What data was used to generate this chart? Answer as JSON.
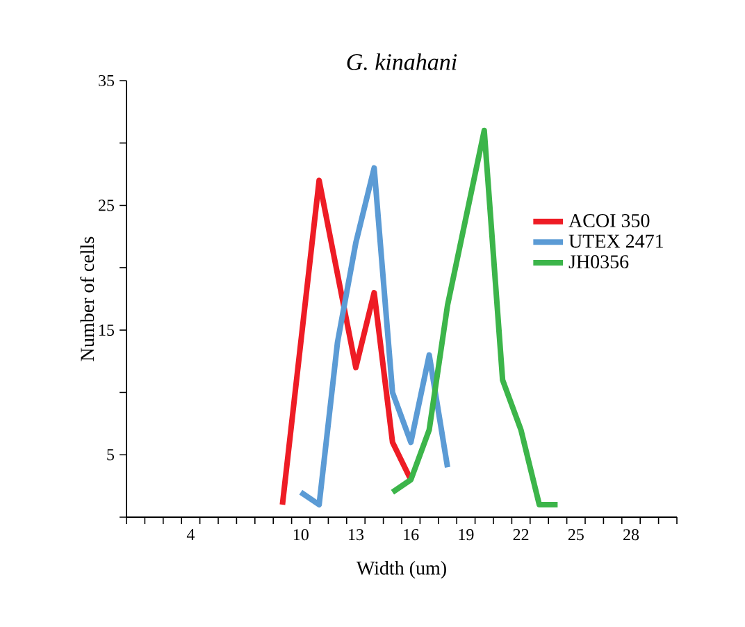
{
  "chart_data": {
    "type": "line",
    "title": "G. kinahani",
    "xlabel": "Width (um)",
    "ylabel": "Number of cells",
    "xlim": [
      0.5,
      30.5
    ],
    "xticks": [
      4,
      10,
      13,
      16,
      19,
      22,
      25,
      28,
      {
        "value": 0.5,
        "label": null
      },
      {
        "value": 1.5,
        "label": null
      },
      {
        "value": 2.5,
        "label": null
      },
      {
        "value": 3.5,
        "label": null
      },
      {
        "value": 4.5,
        "label": null
      },
      {
        "value": 5.5,
        "label": null
      },
      {
        "value": 6.5,
        "label": null
      },
      {
        "value": 7.5,
        "label": null
      },
      {
        "value": 8.5,
        "label": null
      },
      {
        "value": 9.5,
        "label": null
      },
      {
        "value": 10.5,
        "label": null
      },
      {
        "value": 11.5,
        "label": null
      },
      {
        "value": 12.5,
        "label": null
      },
      {
        "value": 13.5,
        "label": null
      },
      {
        "value": 14.5,
        "label": null
      },
      {
        "value": 15.5,
        "label": null
      },
      {
        "value": 16.5,
        "label": null
      },
      {
        "value": 17.5,
        "label": null
      },
      {
        "value": 18.5,
        "label": null
      },
      {
        "value": 19.5,
        "label": null
      },
      {
        "value": 20.5,
        "label": null
      },
      {
        "value": 21.5,
        "label": null
      },
      {
        "value": 22.5,
        "label": null
      },
      {
        "value": 23.5,
        "label": null
      },
      {
        "value": 24.5,
        "label": null
      },
      {
        "value": 25.5,
        "label": null
      },
      {
        "value": 26.5,
        "label": null
      },
      {
        "value": 27.5,
        "label": null
      },
      {
        "value": 28.5,
        "label": null
      },
      {
        "value": 29.5,
        "label": null
      },
      {
        "value": 30.5,
        "label": null
      }
    ],
    "ylim": [
      0,
      35
    ],
    "yticks": [
      {
        "value": 0,
        "label": null
      },
      5,
      {
        "value": 10,
        "label": null
      },
      15,
      {
        "value": 20,
        "label": null
      },
      25,
      {
        "value": 30,
        "label": null
      },
      35
    ],
    "legend": "right",
    "marker": "none",
    "line_style": "solid",
    "grid": false,
    "series": [
      {
        "name": "ACOI 350",
        "color": "#ee1c25",
        "x": [
          9,
          11,
          13,
          14,
          15,
          16
        ],
        "values": [
          1,
          27,
          12,
          18,
          6,
          3
        ]
      },
      {
        "name": "UTEX 2471",
        "color": "#5b9bd5",
        "x": [
          10,
          11,
          12,
          13,
          14,
          15,
          16,
          17,
          18
        ],
        "values": [
          2,
          1,
          14,
          22,
          28,
          10,
          6,
          13,
          4
        ]
      },
      {
        "name": "JH0356",
        "color": "#3cb54a",
        "x": [
          15,
          16,
          17,
          18,
          19,
          20,
          21,
          22,
          23,
          24
        ],
        "values": [
          2,
          3,
          7,
          17,
          24,
          31,
          11,
          7,
          1,
          1
        ]
      }
    ]
  }
}
